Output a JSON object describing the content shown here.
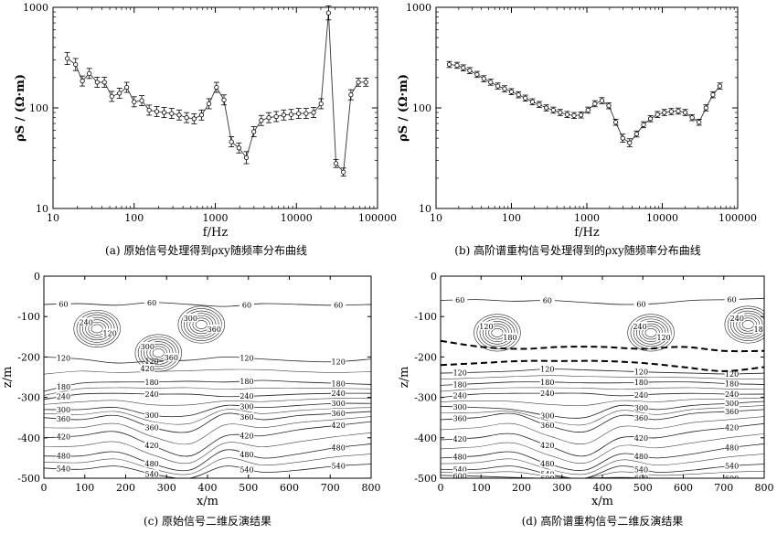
{
  "chart_data": [
    {
      "id": "a",
      "type": "line",
      "x_scale": "log",
      "y_scale": "log",
      "xlim": [
        10,
        100000
      ],
      "ylim": [
        10,
        1000
      ],
      "x_ticks": [
        10,
        100,
        1000,
        10000,
        100000
      ],
      "x_tick_labels": [
        "10",
        "100",
        "1000",
        "10000",
        "100000"
      ],
      "y_ticks": [
        10,
        100,
        1000
      ],
      "y_tick_labels": [
        "10",
        "100",
        "1000"
      ],
      "xlabel": "f/Hz",
      "ylabel": "ρS / (Ω·m)",
      "caption": "(a) 原始信号处理得到ρxy随频率分布曲线",
      "series": [
        {
          "x": [
            15,
            19,
            23,
            28,
            35,
            43,
            53,
            66,
            81,
            100,
            124,
            153,
            190,
            234,
            290,
            359,
            443,
            548,
            677,
            837,
            1035,
            1280,
            1582,
            1955,
            2417,
            2988,
            3693,
            4565,
            5642,
            6974,
            8620,
            10655,
            13171,
            16280,
            20123,
            24873,
            30744,
            38002,
            46972,
            58060,
            71766
          ],
          "y": [
            310,
            270,
            185,
            220,
            180,
            180,
            130,
            140,
            160,
            115,
            118,
            95,
            92,
            90,
            88,
            85,
            80,
            78,
            85,
            110,
            160,
            120,
            46,
            40,
            32,
            58,
            75,
            80,
            82,
            85,
            86,
            88,
            88,
            90,
            110,
            880,
            28,
            23,
            135,
            180,
            180
          ],
          "err": [
            0.06,
            0.06,
            0.05,
            0.05,
            0.05,
            0.05,
            0.05,
            0.05,
            0.05,
            0.05,
            0.05,
            0.05,
            0.05,
            0.05,
            0.05,
            0.05,
            0.05,
            0.05,
            0.05,
            0.05,
            0.05,
            0.05,
            0.05,
            0.05,
            0.06,
            0.05,
            0.05,
            0.05,
            0.05,
            0.05,
            0.05,
            0.05,
            0.05,
            0.05,
            0.05,
            0.07,
            0.04,
            0.04,
            0.05,
            0.04,
            0.04
          ]
        }
      ]
    },
    {
      "id": "b",
      "type": "line",
      "x_scale": "log",
      "y_scale": "log",
      "xlim": [
        10,
        100000
      ],
      "ylim": [
        10,
        1000
      ],
      "x_ticks": [
        10,
        100,
        1000,
        10000,
        100000
      ],
      "x_tick_labels": [
        "10",
        "100",
        "1000",
        "10000",
        "100000"
      ],
      "y_ticks": [
        10,
        100,
        1000
      ],
      "y_tick_labels": [
        "10",
        "100",
        "1000"
      ],
      "xlabel": "f/Hz",
      "ylabel": "ρS / (Ω·m)",
      "caption": "(b) 高阶谱重构信号处理得到的ρxy随频率分布曲线",
      "series": [
        {
          "x": [
            15,
            19,
            23,
            28,
            35,
            43,
            53,
            66,
            81,
            100,
            124,
            153,
            190,
            234,
            290,
            359,
            443,
            548,
            677,
            837,
            1035,
            1280,
            1582,
            1955,
            2417,
            2988,
            3693,
            4565,
            5642,
            6974,
            8620,
            10655,
            13171,
            16280,
            20123,
            24873,
            30744,
            38002,
            46972,
            58060
          ],
          "y": [
            270,
            265,
            250,
            235,
            215,
            195,
            180,
            165,
            155,
            145,
            135,
            125,
            115,
            108,
            100,
            95,
            90,
            86,
            84,
            85,
            95,
            110,
            118,
            105,
            72,
            50,
            45,
            55,
            68,
            78,
            86,
            90,
            92,
            93,
            90,
            80,
            72,
            100,
            135,
            165
          ],
          "err": [
            0.03,
            0.03,
            0.03,
            0.03,
            0.03,
            0.03,
            0.03,
            0.03,
            0.03,
            0.03,
            0.03,
            0.03,
            0.03,
            0.03,
            0.03,
            0.03,
            0.03,
            0.03,
            0.03,
            0.03,
            0.03,
            0.03,
            0.03,
            0.03,
            0.03,
            0.04,
            0.04,
            0.03,
            0.03,
            0.03,
            0.03,
            0.03,
            0.03,
            0.03,
            0.03,
            0.03,
            0.03,
            0.03,
            0.03,
            0.03
          ]
        }
      ]
    },
    {
      "id": "c",
      "type": "contour",
      "xlim": [
        0,
        800
      ],
      "ylim": [
        -500,
        0
      ],
      "x_ticks": [
        0,
        100,
        200,
        300,
        400,
        500,
        600,
        700,
        800
      ],
      "y_ticks": [
        0,
        -100,
        -200,
        -300,
        -400,
        -500
      ],
      "xlabel": "x/m",
      "ylabel": "z/m",
      "caption": "(c) 原始信号二维反演结果",
      "layers": [
        {
          "label": "60",
          "z": [
            -70,
            -68,
            -72,
            -65,
            -70,
            -75,
            -68,
            -70,
            -72,
            -70
          ]
        },
        {
          "label": "120",
          "z": [
            -200,
            -205,
            -215,
            -210,
            -208,
            -200,
            -205,
            -210,
            -212,
            -205
          ]
        },
        {
          "label": "180",
          "z": [
            -285,
            -265,
            -262,
            -262,
            -260,
            -262,
            -258,
            -262,
            -265,
            -268
          ]
        },
        {
          "label": "240",
          "z": [
            -305,
            -292,
            -290,
            -292,
            -292,
            -298,
            -296,
            -292,
            -290,
            -290
          ]
        },
        {
          "label": "300",
          "z": [
            -330,
            -330,
            -325,
            -345,
            -345,
            -320,
            -325,
            -320,
            -315,
            -315
          ]
        },
        {
          "label": "360",
          "z": [
            -350,
            -355,
            -345,
            -375,
            -385,
            -340,
            -355,
            -345,
            -340,
            -335
          ]
        },
        {
          "label": "420",
          "z": [
            -400,
            -395,
            -385,
            -420,
            -445,
            -395,
            -395,
            -380,
            -370,
            -360
          ]
        },
        {
          "label": "480",
          "z": [
            -445,
            -445,
            -435,
            -465,
            -480,
            -430,
            -450,
            -440,
            -425,
            -415
          ]
        },
        {
          "label": "540",
          "z": [
            -475,
            -478,
            -470,
            -490,
            -500,
            -470,
            -485,
            -480,
            -470,
            -465
          ]
        }
      ],
      "anomalies": [
        {
          "x": 130,
          "z": -130,
          "labels": [
            "240",
            "120"
          ]
        },
        {
          "x": 280,
          "z": -190,
          "labels": [
            "300",
            "360",
            "420"
          ]
        },
        {
          "x": 385,
          "z": -120,
          "labels": [
            "300",
            "360"
          ]
        }
      ]
    },
    {
      "id": "d",
      "type": "contour",
      "xlim": [
        0,
        800
      ],
      "ylim": [
        -500,
        0
      ],
      "x_ticks": [
        0,
        100,
        200,
        300,
        400,
        500,
        600,
        700,
        800
      ],
      "y_ticks": [
        0,
        -100,
        -200,
        -300,
        -400,
        -500
      ],
      "xlabel": "x/m",
      "ylabel": "z/m",
      "caption": "(d) 高阶谱重构信号二维反演结果",
      "layers": [
        {
          "label": "60",
          "z": [
            -60,
            -58,
            -62,
            -60,
            -65,
            -70,
            -68,
            -60,
            -58,
            -55
          ]
        },
        {
          "label": "120",
          "z": [
            -240,
            -238,
            -235,
            -230,
            -232,
            -235,
            -238,
            -240,
            -242,
            -240
          ]
        },
        {
          "label": "180",
          "z": [
            -270,
            -266,
            -262,
            -262,
            -264,
            -264,
            -262,
            -262,
            -266,
            -268
          ]
        },
        {
          "label": "240",
          "z": [
            -300,
            -292,
            -290,
            -290,
            -290,
            -296,
            -292,
            -290,
            -292,
            -292
          ]
        },
        {
          "label": "300",
          "z": [
            -322,
            -325,
            -330,
            -345,
            -350,
            -320,
            -330,
            -320,
            -315,
            -310
          ]
        },
        {
          "label": "360",
          "z": [
            -355,
            -350,
            -340,
            -370,
            -385,
            -345,
            -355,
            -340,
            -335,
            -330
          ]
        },
        {
          "label": "420",
          "z": [
            -405,
            -400,
            -390,
            -420,
            -445,
            -400,
            -400,
            -385,
            -375,
            -365
          ]
        },
        {
          "label": "480",
          "z": [
            -450,
            -445,
            -435,
            -465,
            -480,
            -440,
            -450,
            -440,
            -425,
            -415
          ]
        },
        {
          "label": "540",
          "z": [
            -478,
            -478,
            -470,
            -490,
            -500,
            -470,
            -485,
            -480,
            -470,
            -465
          ]
        },
        {
          "label": "600",
          "z": [
            -493,
            -495,
            -498,
            -500,
            -500,
            -498,
            -500,
            -500,
            -500,
            -500
          ]
        }
      ],
      "boundaries": [
        {
          "x": [
            0,
            100,
            200,
            300,
            400,
            500,
            600,
            700,
            800
          ],
          "z": [
            -160,
            -175,
            -180,
            -175,
            -175,
            -180,
            -175,
            -185,
            -185
          ]
        },
        {
          "x": [
            0,
            100,
            200,
            300,
            400,
            500,
            600,
            700,
            800
          ],
          "z": [
            -220,
            -215,
            -210,
            -210,
            -210,
            -215,
            -225,
            -235,
            -225
          ]
        }
      ],
      "anomalies": [
        {
          "x": 140,
          "z": -140,
          "labels": [
            "120",
            "180"
          ]
        },
        {
          "x": 520,
          "z": -140,
          "labels": [
            "240",
            "120"
          ]
        },
        {
          "x": 760,
          "z": -120,
          "labels": [
            "240",
            "180"
          ]
        }
      ]
    }
  ]
}
